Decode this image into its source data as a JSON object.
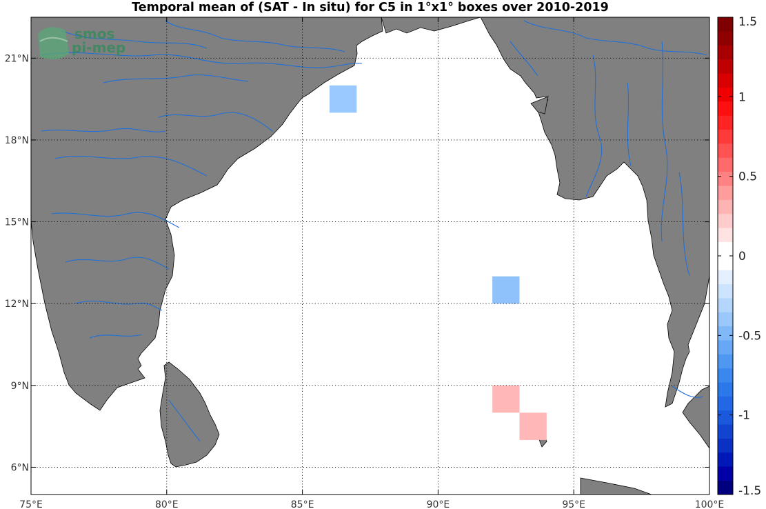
{
  "title": "Temporal mean of (SAT - In situ) for C5 in 1°x1° boxes over 2010-2019",
  "logo": {
    "line1": "smos",
    "line2": "pi-mep"
  },
  "map": {
    "lon_range": [
      75,
      100
    ],
    "lat_range": [
      5,
      22.5
    ],
    "land_color": "#808080",
    "river_color": "#1e6fd9",
    "x_ticks": [
      {
        "value": 75,
        "label": "75°E"
      },
      {
        "value": 80,
        "label": "80°E"
      },
      {
        "value": 85,
        "label": "85°E"
      },
      {
        "value": 90,
        "label": "90°E"
      },
      {
        "value": 95,
        "label": "95°E"
      },
      {
        "value": 100,
        "label": "100°E"
      }
    ],
    "y_ticks": [
      {
        "value": 6,
        "label": "6°N"
      },
      {
        "value": 9,
        "label": "9°N"
      },
      {
        "value": 12,
        "label": "12°N"
      },
      {
        "value": 15,
        "label": "15°N"
      },
      {
        "value": 18,
        "label": "18°N"
      },
      {
        "value": 21,
        "label": "21°N"
      }
    ],
    "boxes": [
      {
        "lon": 86,
        "lat": 19,
        "value": -0.3,
        "color": "#99c9ff"
      },
      {
        "lon": 92,
        "lat": 12,
        "value": -0.35,
        "color": "#8fc2fb"
      },
      {
        "lon": 92,
        "lat": 8,
        "value": 0.25,
        "color": "#ffb7b7"
      },
      {
        "lon": 93,
        "lat": 7,
        "value": 0.25,
        "color": "#ffb7b7"
      }
    ]
  },
  "colorbar": {
    "min": -1.5,
    "max": 1.5,
    "ticks": [
      {
        "value": 1.5,
        "label": "1.5"
      },
      {
        "value": 1,
        "label": "1"
      },
      {
        "value": 0.5,
        "label": "0.5"
      },
      {
        "value": 0,
        "label": "0"
      },
      {
        "value": -0.5,
        "label": "-0.5"
      },
      {
        "value": -1,
        "label": "-1"
      },
      {
        "value": -1.5,
        "label": "-1.5"
      }
    ],
    "colors": [
      "#00007f",
      "#0000a6",
      "#0018b8",
      "#0a30c4",
      "#1244d0",
      "#1a58dc",
      "#2268e4",
      "#2a78ea",
      "#3a88ee",
      "#4e98f2",
      "#66a8f5",
      "#80b8f8",
      "#9ac8fa",
      "#b4d6fc",
      "#cce4fd",
      "#e4f0fe",
      "#ffffff",
      "#ffffff",
      "#ffe2e2",
      "#ffcccc",
      "#ffb4b4",
      "#ff9c9c",
      "#ff8282",
      "#ff6a6a",
      "#ff5252",
      "#ff3a3a",
      "#ff2424",
      "#ff1010",
      "#f00000",
      "#d80000",
      "#c00000",
      "#a80000",
      "#900000",
      "#7f0000"
    ]
  }
}
